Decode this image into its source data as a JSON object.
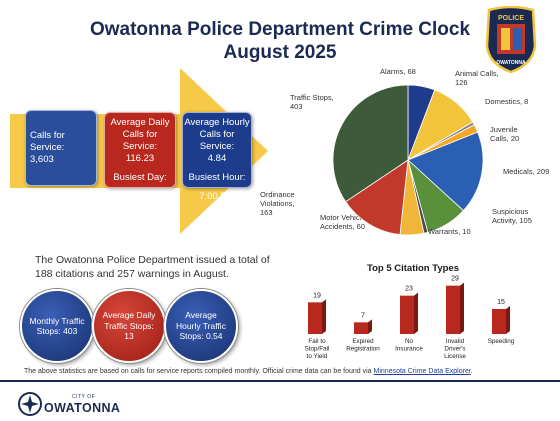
{
  "header": {
    "title_line1": "Owatonna Police Department Crime Clock",
    "title_line2": "August 2025",
    "badge_top": "POLICE",
    "badge_bottom": "OWATONNA"
  },
  "stats": {
    "calls": {
      "label": "Calls for Service:",
      "value": "3,603"
    },
    "daily": {
      "label": "Average Daily Calls for Service:",
      "value": "116.23",
      "extra_label": "Busiest Day:",
      "extra_value": "Tuesday"
    },
    "hourly": {
      "label": "Average Hourly Calls for Service:",
      "value": "4.84",
      "extra_label": "Busiest Hour:",
      "extra_value": "7:00 PM"
    }
  },
  "summary_text": "The Owatonna Police Department issued a total of 188 citations and 257 warnings in August.",
  "traffic": [
    {
      "label": "Monthly Traffic Stops: 403"
    },
    {
      "label": "Average Daily Traffic Stops: 13"
    },
    {
      "label": "Average Hourly Traffic Stops: 0.54"
    }
  ],
  "chart_data": [
    {
      "type": "pie",
      "title": "",
      "slices": [
        {
          "label": "Alarms, 68",
          "value": 68,
          "color": "#1f3b8c"
        },
        {
          "label": "Animal Calls, 126",
          "value": 126,
          "color": "#f2c43c"
        },
        {
          "label": "Domestics, 8",
          "value": 8,
          "color": "#888888"
        },
        {
          "label": "Juvenile Calls, 20",
          "value": 20,
          "color": "#f5a623"
        },
        {
          "label": "Medicals, 209",
          "value": 209,
          "color": "#2b5fb3"
        },
        {
          "label": "Suspicious Activity, 105",
          "value": 105,
          "color": "#5a8f3c"
        },
        {
          "label": "Warrants, 10",
          "value": 10,
          "color": "#4a4a4a"
        },
        {
          "label": "Motor Vehicle Accidents, 60",
          "value": 60,
          "color": "#f0b63a"
        },
        {
          "label": "Ordinance Violations, 163",
          "value": 163,
          "color": "#c0392b"
        },
        {
          "label": "Traffic Stops, 403",
          "value": 403,
          "color": "#3d5a3a"
        }
      ]
    },
    {
      "type": "bar",
      "title": "Top 5 Citation Types",
      "categories": [
        "Fail to Stop/Fail to Yield",
        "Expired Registration",
        "No Insurance",
        "Invalid Driver's License",
        "Speeding"
      ],
      "values": [
        19,
        7,
        23,
        29,
        15
      ],
      "color": "#b8281e",
      "ylim": [
        0,
        30
      ]
    }
  ],
  "footer": {
    "note": "The above statistics are based on calls for service reports compiled monthly.  Official crime data can be found via ",
    "link": "Minnesota Crime Data Explorer",
    "note_end": ".",
    "logo_city": "CITY OF",
    "logo_name": "OWATONNA"
  }
}
